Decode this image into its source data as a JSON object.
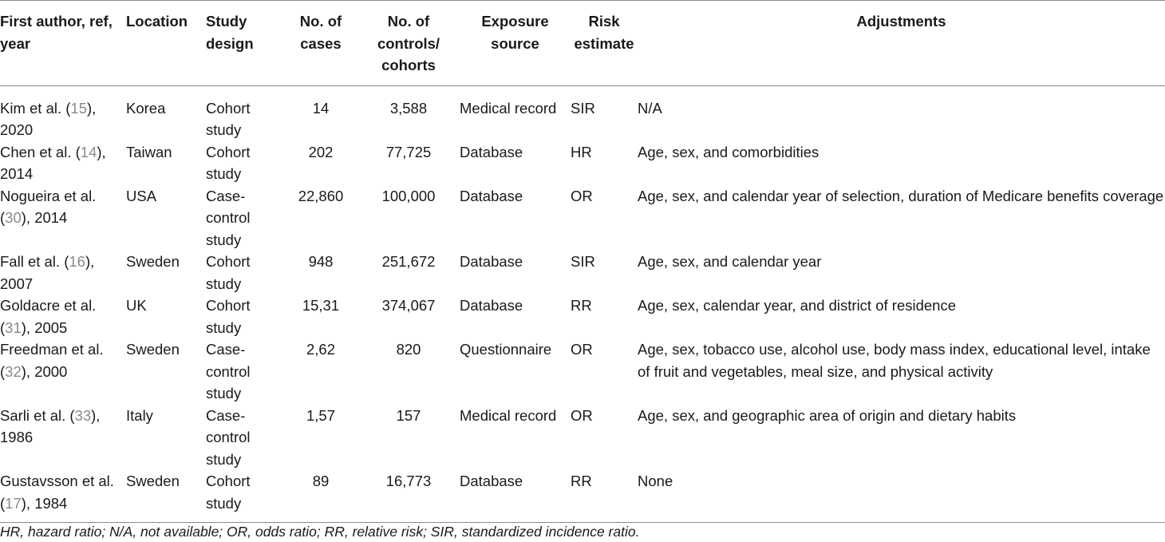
{
  "table": {
    "headers": [
      "First author, ref, year",
      "Location",
      "Study design",
      "No. of cases",
      "No. of controls/ cohorts",
      "Exposure source",
      "Risk estimate",
      "Adjustments"
    ],
    "rows": [
      {
        "author_pre": "Kim et al. (",
        "ref": "15",
        "author_post": "), 2020",
        "location": "Korea",
        "design": "Cohort study",
        "cases": "14",
        "controls": "3,588",
        "source": "Medical record",
        "risk": "SIR",
        "adjustments": "N/A"
      },
      {
        "author_pre": "Chen et al. (",
        "ref": "14",
        "author_post": "), 2014",
        "location": "Taiwan",
        "design": "Cohort study",
        "cases": "202",
        "controls": "77,725",
        "source": "Database",
        "risk": "HR",
        "adjustments": "Age, sex, and comorbidities"
      },
      {
        "author_pre": "Nogueira et al. (",
        "ref": "30",
        "author_post": "), 2014",
        "location": "USA",
        "design": "Case-control study",
        "cases": "22,860",
        "controls": "100,000",
        "source": "Database",
        "risk": "OR",
        "adjustments": "Age, sex, and calendar year of selection, duration of Medicare benefits coverage"
      },
      {
        "author_pre": "Fall et al. (",
        "ref": "16",
        "author_post": "), 2007",
        "location": "Sweden",
        "design": "Cohort study",
        "cases": "948",
        "controls": "251,672",
        "source": "Database",
        "risk": "SIR",
        "adjustments": "Age, sex, and calendar year"
      },
      {
        "author_pre": "Goldacre et al. (",
        "ref": "31",
        "author_post": "), 2005",
        "location": "UK",
        "design": "Cohort study",
        "cases": "15,31",
        "controls": "374,067",
        "source": "Database",
        "risk": "RR",
        "adjustments": "Age, sex, calendar year, and district of residence"
      },
      {
        "author_pre": "Freedman et al. (",
        "ref": "32",
        "author_post": "), 2000",
        "location": "Sweden",
        "design": "Case-control study",
        "cases": "2,62",
        "controls": "820",
        "source": "Questionnaire",
        "risk": "OR",
        "adjustments": "Age, sex, tobacco use, alcohol use, body mass index, educational level, intake of fruit and vegetables, meal size, and physical activity"
      },
      {
        "author_pre": "Sarli et al. (",
        "ref": "33",
        "author_post": "), 1986",
        "location": "Italy",
        "design": "Case-control study",
        "cases": "1,57",
        "controls": "157",
        "source": "Medical record",
        "risk": "OR",
        "adjustments": "Age, sex, and geographic area of origin and dietary habits"
      },
      {
        "author_pre": "Gustavsson et al. (",
        "ref": "17",
        "author_post": "), 1984",
        "location": "Sweden",
        "design": "Cohort study",
        "cases": "89",
        "controls": "16,773",
        "source": "Database",
        "risk": "RR",
        "adjustments": "None"
      }
    ]
  },
  "footnote": "HR, hazard ratio; N/A, not available; OR, odds ratio; RR, relative risk; SIR, standardized incidence ratio."
}
